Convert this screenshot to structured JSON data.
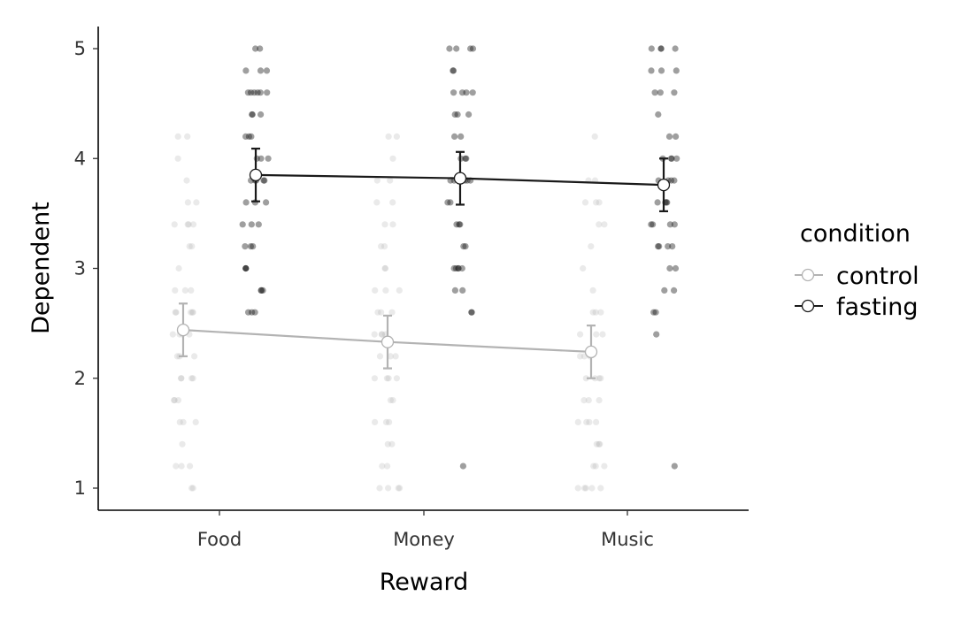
{
  "chart_data": {
    "type": "scatter",
    "xlabel": "Reward",
    "ylabel": "Dependent",
    "categories": [
      "Food",
      "Money",
      "Music"
    ],
    "ylim": [
      0.8,
      5.2
    ],
    "yticks": [
      "1",
      "2",
      "3",
      "4",
      "5"
    ],
    "grid": false,
    "legend": {
      "title": "condition",
      "position": "right",
      "entries": [
        "control",
        "fasting"
      ]
    },
    "series": [
      {
        "name": "control",
        "color": "#b3b3b3",
        "means": [
          2.44,
          2.33,
          2.24
        ],
        "ci_low": [
          2.2,
          2.09,
          2.0
        ],
        "ci_high": [
          2.68,
          2.57,
          2.48
        ],
        "points": [
          [
            4.2,
            4.0,
            3.8,
            3.6,
            3.6,
            3.4,
            3.4,
            3.4,
            3.4,
            3.2,
            3.2,
            3.0,
            2.8,
            2.8,
            2.8,
            2.6,
            2.6,
            2.6,
            2.6,
            2.6,
            2.4,
            2.4,
            2.4,
            2.4,
            2.2,
            2.2,
            2.2,
            2.0,
            2.0,
            2.0,
            2.0,
            1.8,
            1.8,
            1.8,
            1.6,
            1.6,
            1.6,
            1.4,
            1.2,
            1.2,
            1.2,
            1.0,
            1.0,
            4.2
          ],
          [
            4.2,
            4.2,
            4.0,
            3.8,
            3.8,
            3.6,
            3.6,
            3.4,
            3.4,
            3.2,
            3.2,
            3.0,
            3.0,
            2.8,
            2.8,
            2.8,
            2.6,
            2.6,
            2.6,
            2.4,
            2.4,
            2.4,
            2.4,
            2.2,
            2.2,
            2.0,
            2.0,
            2.0,
            1.8,
            1.8,
            1.6,
            1.6,
            1.6,
            1.4,
            1.4,
            1.2,
            1.2,
            1.0,
            1.0,
            1.0,
            1.0,
            2.2,
            2.0
          ],
          [
            4.2,
            3.8,
            3.8,
            3.6,
            3.6,
            3.6,
            3.4,
            3.4,
            3.2,
            3.0,
            2.8,
            2.6,
            2.6,
            2.6,
            2.4,
            2.4,
            2.4,
            2.2,
            2.2,
            2.2,
            2.0,
            2.0,
            2.0,
            1.8,
            1.8,
            1.8,
            1.6,
            1.6,
            1.6,
            1.4,
            1.4,
            1.4,
            1.2,
            1.2,
            1.0,
            1.0,
            1.0,
            1.0,
            1.0,
            2.0,
            1.6,
            1.2
          ]
        ]
      },
      {
        "name": "fasting",
        "color": "#1a1a1a",
        "means": [
          3.85,
          3.82,
          3.76
        ],
        "ci_low": [
          3.61,
          3.58,
          3.52
        ],
        "ci_high": [
          4.09,
          4.06,
          4.0
        ],
        "points": [
          [
            5.0,
            5.0,
            4.8,
            4.8,
            4.8,
            4.6,
            4.6,
            4.6,
            4.6,
            4.6,
            4.4,
            4.4,
            4.4,
            4.2,
            4.2,
            4.2,
            4.0,
            4.0,
            4.0,
            3.8,
            3.8,
            3.8,
            3.8,
            3.8,
            3.6,
            3.6,
            3.6,
            3.4,
            3.4,
            3.4,
            3.2,
            3.2,
            3.0,
            3.0,
            3.0,
            2.8,
            2.8,
            2.8,
            2.6,
            2.6,
            2.6,
            4.6,
            3.2
          ],
          [
            5.0,
            5.0,
            5.0,
            5.0,
            4.8,
            4.8,
            4.6,
            4.6,
            4.6,
            4.6,
            4.4,
            4.4,
            4.2,
            4.2,
            4.0,
            4.0,
            4.0,
            3.8,
            3.8,
            3.8,
            3.8,
            3.6,
            3.6,
            3.4,
            3.4,
            3.4,
            3.2,
            3.2,
            3.0,
            3.0,
            3.0,
            3.0,
            2.8,
            2.8,
            2.6,
            2.6,
            1.2,
            4.4,
            3.8,
            3.0
          ],
          [
            5.0,
            5.0,
            5.0,
            5.0,
            4.8,
            4.8,
            4.8,
            4.6,
            4.6,
            4.6,
            4.4,
            4.2,
            4.2,
            4.0,
            4.0,
            4.0,
            3.8,
            3.8,
            3.8,
            3.8,
            3.6,
            3.6,
            3.6,
            3.4,
            3.4,
            3.4,
            3.4,
            3.2,
            3.2,
            3.2,
            3.0,
            3.0,
            2.8,
            2.8,
            2.6,
            2.6,
            2.4,
            1.2,
            4.0,
            3.6,
            3.2
          ]
        ]
      }
    ]
  }
}
